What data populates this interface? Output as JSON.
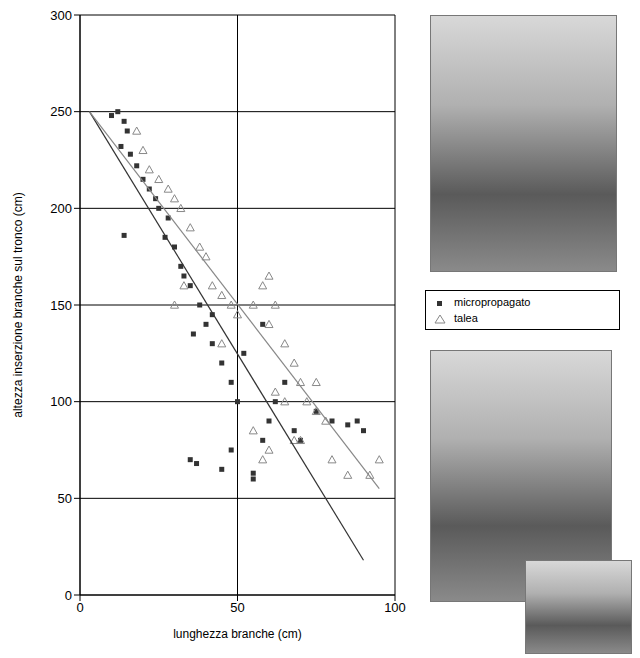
{
  "chart_data": {
    "type": "scatter",
    "x_label": "lunghezza branche (cm)",
    "y_label": "altezza inserzione branche sul tronco (cm)",
    "xlim": [
      0,
      100
    ],
    "xticks": [
      0,
      50,
      100
    ],
    "ylim": [
      0,
      300
    ],
    "yticks": [
      0,
      50,
      100,
      150,
      200,
      250,
      300
    ],
    "grid": true,
    "legend": "right",
    "series": [
      {
        "name": "micropropagato",
        "color": "#333333",
        "marker": "square",
        "x": [
          10,
          12,
          14,
          15,
          13,
          16,
          18,
          20,
          22,
          14,
          25,
          28,
          30,
          32,
          35,
          33,
          38,
          40,
          42,
          45,
          48,
          50,
          35,
          37,
          45,
          48,
          55,
          58,
          60,
          62,
          65,
          68,
          70,
          75,
          80,
          85,
          88,
          90,
          42,
          52,
          58,
          24,
          27,
          36,
          55
        ],
        "y": [
          248,
          250,
          245,
          240,
          232,
          228,
          222,
          215,
          210,
          186,
          200,
          195,
          180,
          170,
          160,
          165,
          150,
          140,
          130,
          120,
          110,
          100,
          70,
          68,
          65,
          75,
          60,
          80,
          90,
          100,
          110,
          85,
          80,
          95,
          90,
          88,
          90,
          85,
          145,
          125,
          140,
          205,
          185,
          135,
          63
        ],
        "fit": {
          "x": [
            3,
            90
          ],
          "y": [
            250,
            18
          ]
        }
      },
      {
        "name": "talea",
        "color": "#888888",
        "marker": "triangle",
        "x": [
          18,
          20,
          22,
          25,
          28,
          30,
          32,
          35,
          38,
          40,
          42,
          45,
          48,
          50,
          55,
          58,
          60,
          62,
          60,
          65,
          68,
          70,
          72,
          75,
          78,
          62,
          65,
          68,
          55,
          58,
          60,
          80,
          85,
          92,
          95,
          70,
          75,
          30,
          33,
          45
        ],
        "y": [
          240,
          230,
          220,
          215,
          210,
          205,
          200,
          190,
          180,
          175,
          160,
          155,
          150,
          145,
          150,
          160,
          165,
          150,
          140,
          130,
          120,
          110,
          100,
          95,
          90,
          105,
          100,
          80,
          85,
          70,
          75,
          70,
          62,
          62,
          70,
          80,
          110,
          150,
          160,
          130
        ],
        "fit": {
          "x": [
            3,
            95
          ],
          "y": [
            250,
            55
          ]
        }
      }
    ]
  }
}
